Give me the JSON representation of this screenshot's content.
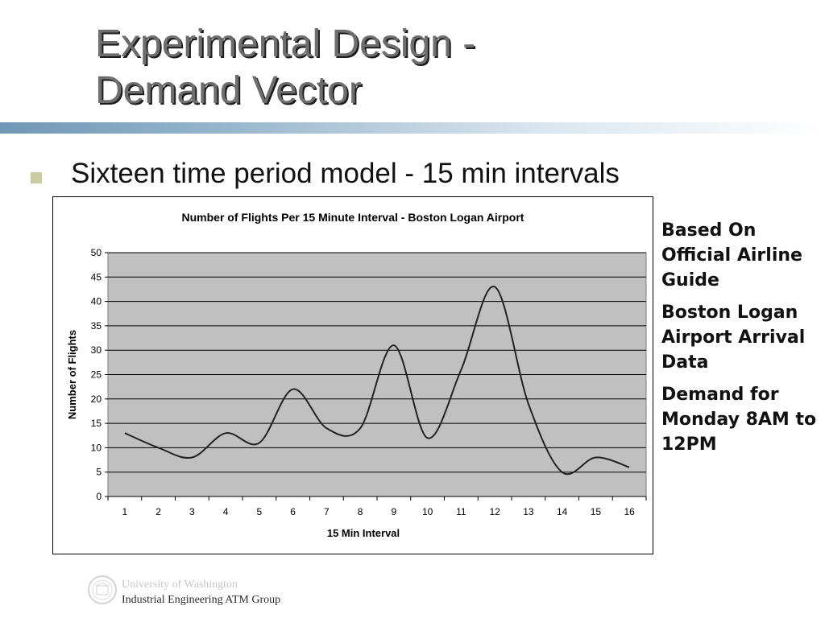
{
  "slide": {
    "title_line1": "Experimental Design -",
    "title_line2": "Demand Vector",
    "bullet": "Sixteen time period model - 15 min intervals",
    "notes": [
      "Based On Official Airline Guide",
      "Boston Logan Airport Arrival Data",
      "Demand for Monday 8AM to 12PM"
    ],
    "footer_line1": "University of Washington",
    "footer_line2": "Industrial Engineering ATM Group"
  },
  "chart_data": {
    "type": "line",
    "title": "Number of Flights Per 15 Minute Interval - Boston Logan Airport",
    "xlabel": "15 Min Interval",
    "ylabel": "Number of Flights",
    "x": [
      1,
      2,
      3,
      4,
      5,
      6,
      7,
      8,
      9,
      10,
      11,
      12,
      13,
      14,
      15,
      16
    ],
    "values": [
      13,
      10,
      8,
      13,
      11,
      22,
      14,
      14,
      31,
      12,
      26,
      43,
      19,
      5,
      8,
      6
    ],
    "ylim": [
      0,
      50
    ],
    "yticks": [
      0,
      5,
      10,
      15,
      20,
      25,
      30,
      35,
      40,
      45,
      50
    ],
    "grid": true,
    "plot_background": "#c0c0c0",
    "line_color": "#222222"
  }
}
